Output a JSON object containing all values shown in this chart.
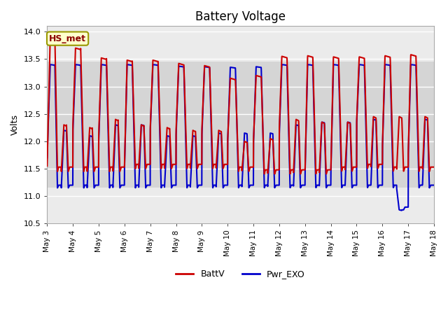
{
  "title": "Battery Voltage",
  "ylabel": "Volts",
  "xlabel": "",
  "ylim": [
    10.5,
    14.1
  ],
  "xlim_days": [
    0,
    15
  ],
  "yticks": [
    10.5,
    11.0,
    11.5,
    12.0,
    12.5,
    13.0,
    13.5,
    14.0
  ],
  "xtick_labels": [
    "May 3",
    "May 4",
    "May 5",
    "May 6",
    "May 7",
    "May 8",
    "May 9",
    "May 10",
    "May 11",
    "May 12",
    "May 13",
    "May 14",
    "May 15",
    "May 16",
    "May 17",
    "May 18"
  ],
  "xtick_positions": [
    0,
    1,
    2,
    3,
    4,
    5,
    6,
    7,
    8,
    9,
    10,
    11,
    12,
    13,
    14,
    15
  ],
  "shade_ymin": 11.15,
  "shade_ymax": 13.45,
  "line_red_color": "#cc0000",
  "line_blue_color": "#0000cc",
  "line_width": 1.5,
  "legend_labels": [
    "BattV",
    "Pwr_EXO"
  ],
  "annotation_text": "HS_met",
  "background_color": "#ffffff",
  "plot_bg_color": "#ebebeb",
  "grid_color": "#ffffff",
  "title_fontsize": 12
}
